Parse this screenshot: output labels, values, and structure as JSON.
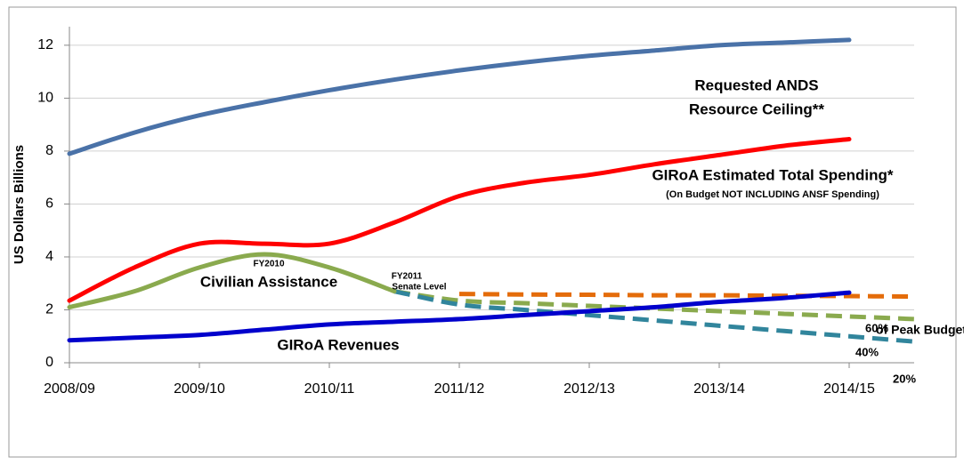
{
  "chart_data": {
    "type": "line",
    "y_label": "US Dollars Billions",
    "categories": [
      "2008/09",
      null,
      "2009/10",
      null,
      "2010/11",
      null,
      "2011/12",
      null,
      "2012/13",
      null,
      "2013/14",
      null,
      "2014/15",
      null
    ],
    "ylim": [
      0,
      12.5
    ],
    "yticks": [
      0,
      2,
      4,
      6,
      8,
      10,
      12
    ],
    "grid": true,
    "series": [
      {
        "color": "#4a72a8",
        "dash": false,
        "values": [
          7.9,
          8.7,
          9.35,
          9.85,
          10.3,
          10.7,
          11.05,
          11.35,
          11.6,
          11.8,
          12.0,
          12.1,
          12.2,
          null
        ]
      },
      {
        "color": "#ff0000",
        "dash": false,
        "values": [
          2.35,
          3.6,
          4.5,
          4.5,
          4.5,
          5.3,
          6.3,
          6.8,
          7.1,
          7.5,
          7.85,
          8.2,
          8.45,
          null
        ]
      },
      {
        "color": "#e46c0a",
        "dash": true,
        "values": [
          null,
          null,
          null,
          null,
          null,
          null,
          2.6,
          2.58,
          2.57,
          2.55,
          2.55,
          2.53,
          2.52,
          2.5
        ]
      },
      {
        "color": "#8aaa4e",
        "dash": true,
        "values": [
          null,
          null,
          null,
          null,
          null,
          2.7,
          2.35,
          2.25,
          2.15,
          2.05,
          1.95,
          1.85,
          1.75,
          1.65
        ]
      },
      {
        "color": "#31859c",
        "dash": true,
        "values": [
          null,
          null,
          null,
          null,
          null,
          2.7,
          2.2,
          2.0,
          1.8,
          1.6,
          1.4,
          1.2,
          1.0,
          0.8
        ]
      },
      {
        "color": "#8aaa4e",
        "dash": false,
        "values": [
          2.1,
          2.7,
          3.6,
          4.1,
          3.6,
          2.7,
          null,
          null,
          null,
          null,
          null,
          null,
          null,
          null
        ]
      },
      {
        "color": "#0000cc",
        "dash": false,
        "values": [
          0.85,
          0.95,
          1.05,
          1.25,
          1.45,
          1.55,
          1.65,
          1.8,
          1.95,
          2.1,
          2.3,
          2.45,
          2.65,
          null
        ]
      }
    ],
    "annotations": [
      "Requested ANDS",
      "Resource Ceiling**",
      "GIRoA Estimated Total Spending*",
      "(On Budget NOT INCLUDING ANSF Spending)",
      "FY2010",
      "Civilian Assistance",
      "FY2011",
      "Senate Level",
      "GIRoA Revenues",
      "60%",
      "of Peak Budget",
      "40%",
      "20%"
    ]
  }
}
